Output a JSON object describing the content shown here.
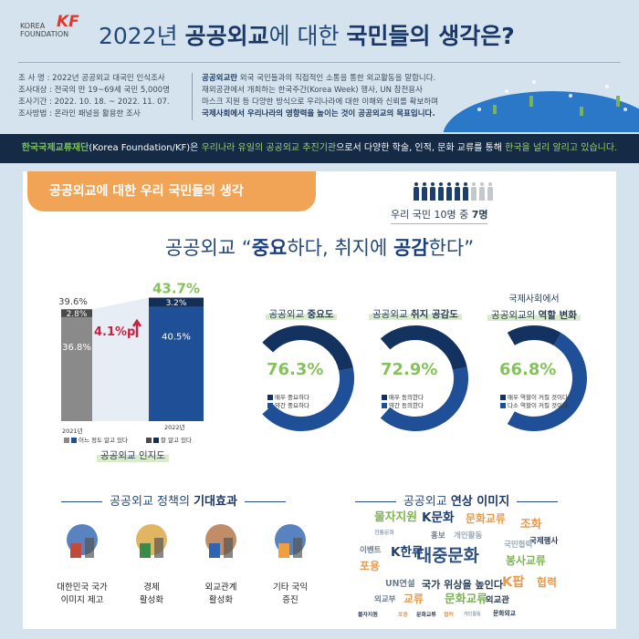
{
  "header": {
    "logo_text": "KOREA FOUNDATION",
    "logo_mark": "KF",
    "title_prefix": "2022년 ",
    "title_bold1": "공공외교",
    "title_mid": "에 대한 ",
    "title_bold2": "국민들의 생각은?"
  },
  "survey": [
    {
      "label": "조 사 명",
      "value": "2022년 공공외교 대국민 인식조사"
    },
    {
      "label": "조사대상",
      "value": "전국의 만 19~69세 국민 5,000명"
    },
    {
      "label": "조사기간",
      "value": "2022. 10. 18. ~ 2022. 11. 07."
    },
    {
      "label": "조사방법",
      "value": "온라인 패널을 활용한 조사"
    }
  ],
  "definition": {
    "bold": "공공외교란",
    "line1": " 외국 국민들과의 직접적인 소통을 통한 외교활동을 말합니다.",
    "line2": "재외공관에서 개최하는 한국주간(Korea Week) 행사, UN 참전용사",
    "line3": "마스크 지원 등 다양한 방식으로 우리나라에 대한 이해와 신뢰를 확보하며",
    "line4": "국제사회에서 우리나라의 영향력을 높이는 것이 공공외교의 목표입니다."
  },
  "band": {
    "org": "한국국제교류재단",
    "org_en": "(Korea Foundation/KF)은 ",
    "g1": "우리나라 유일의 공공외교 추진기관",
    "t1": "으로서 다양한 학술, 인적, 문화 교류를 통해 ",
    "g2": "한국을 널리 알리고 있습니다."
  },
  "section_tab": "공공외교에 대한 우리 국민들의 생각",
  "people": {
    "total": 10,
    "highlighted": 7,
    "text": "우리 국민 10명 중 ",
    "bold": "7명",
    "color_on": "#1d3f6e",
    "color_off": "#c4c8cc"
  },
  "headline": {
    "a": "공공외교 “",
    "b1": "중요",
    "c": "하다, 취지에 ",
    "b2": "공감",
    "d": "한다”"
  },
  "chart_data": [
    {
      "type": "bar",
      "stacked": true,
      "title": "공공외교 인지도",
      "categories": [
        "2021년",
        "2022년"
      ],
      "series": [
        {
          "name": "어느 정도 알고 있다",
          "values": [
            36.8,
            40.5
          ],
          "colors": [
            "#8a8a8a",
            "#1f4f96"
          ]
        },
        {
          "name": "잘 알고 있다",
          "values": [
            2.8,
            3.2
          ],
          "colors": [
            "#4a4a4a",
            "#142e56"
          ]
        }
      ],
      "totals": [
        "39.6%",
        "43.7%"
      ],
      "value_labels": [
        [
          "36.8%",
          "40.5%"
        ],
        [
          "2.8%",
          "3.2%"
        ]
      ],
      "change": "4.1%p",
      "ylim": [
        0,
        50
      ]
    },
    {
      "type": "pie",
      "donut": true,
      "title_a": "공공외교 ",
      "title_b": "중요도",
      "total": "76.3%",
      "series": [
        {
          "name": "매우 중요하다",
          "value": 35.0,
          "color": "#143260"
        },
        {
          "name": "약간 중요하다",
          "value": 41.3,
          "color": "#1f4f96"
        }
      ]
    },
    {
      "type": "pie",
      "donut": true,
      "title_a": "공공외교 ",
      "title_b": "취지 공감도",
      "total": "72.9%",
      "series": [
        {
          "name": "매우 동의한다",
          "value": 33.0,
          "color": "#143260"
        },
        {
          "name": "약간 동의한다",
          "value": 39.9,
          "color": "#1f4f96"
        }
      ]
    },
    {
      "type": "pie",
      "donut": true,
      "title_top": "국제사회에서",
      "title_a": "공공외교의 ",
      "title_b": "역할 변화",
      "total": "66.8%",
      "series": [
        {
          "name": "매우 역할이 커질 것이다",
          "value": 17.0,
          "color": "#143260"
        },
        {
          "name": "다소 역할이 커질 것이다",
          "value": 49.8,
          "color": "#1f4f96"
        }
      ]
    }
  ],
  "effects": {
    "title_a": "공공외교 정책의 ",
    "title_b": "기대효과",
    "items": [
      {
        "icon": "korea-landmark-flag-icon",
        "l1": "대한민국 국가",
        "l2": "이미지 제고"
      },
      {
        "icon": "globe-growth-chart-icon",
        "l1": "경제",
        "l2": "활성화"
      },
      {
        "icon": "handshake-globe-icon",
        "l1": "외교관계",
        "l2": "활성화"
      },
      {
        "icon": "media-megaphone-icon",
        "l1": "기타 국익",
        "l2": "증진"
      }
    ]
  },
  "cloud": {
    "title_a": "공공외교 ",
    "title_b": "연상 이미지",
    "words": [
      {
        "t": "물자지원",
        "c": "#7cb354",
        "s": 15
      },
      {
        "t": "K문화",
        "c": "#1f3f72",
        "s": 16
      },
      {
        "t": "문화교류",
        "c": "#e69a4e",
        "s": 14
      },
      {
        "t": "전통문화",
        "c": "#9aa8b6",
        "s": 7
      },
      {
        "t": "홍보",
        "c": "#6b7c8e",
        "s": 10
      },
      {
        "t": "개인활동",
        "c": "#9aa8b6",
        "s": 10
      },
      {
        "t": "이벤트",
        "c": "#6b7c8e",
        "s": 10
      },
      {
        "t": "대중문화",
        "c": "#2d5082",
        "s": 22
      },
      {
        "t": "포용",
        "c": "#e69a4e",
        "s": 14
      },
      {
        "t": "UN연설",
        "c": "#6b7c8e",
        "s": 11
      },
      {
        "t": "국가 위상을 높인다",
        "c": "#2b3f57",
        "s": 13
      },
      {
        "t": "K팝",
        "c": "#e69a4e",
        "s": 17
      },
      {
        "t": "외교부",
        "c": "#6b7c8e",
        "s": 10
      },
      {
        "t": "교류",
        "c": "#e69a4e",
        "s": 14
      },
      {
        "t": "문화교류",
        "c": "#7cb354",
        "s": 15
      },
      {
        "t": "외교관",
        "c": "#2b3f57",
        "s": 11
      },
      {
        "t": "물자지원",
        "c": "#2b3f57",
        "s": 7
      },
      {
        "t": "포용",
        "c": "#e69a4e",
        "s": 7
      },
      {
        "t": "문화교류",
        "c": "#2b3f57",
        "s": 7
      },
      {
        "t": "협력",
        "c": "#e69a4e",
        "s": 7
      },
      {
        "t": "개인활동",
        "c": "#9aa8b6",
        "s": 6
      },
      {
        "t": "문화외교",
        "c": "#2b3f57",
        "s": 8
      },
      {
        "t": "봉사교류",
        "c": "#7cb354",
        "s": 14
      },
      {
        "t": "조화",
        "c": "#e69a4e",
        "s": 15
      },
      {
        "t": "K한류",
        "c": "#1f3f72",
        "s": 16
      },
      {
        "t": "국제행사",
        "c": "#2b3f57",
        "s": 10
      },
      {
        "t": "국민협력",
        "c": "#9aa8b6",
        "s": 10
      },
      {
        "t": "협력",
        "c": "#e69a4e",
        "s": 14
      }
    ]
  }
}
